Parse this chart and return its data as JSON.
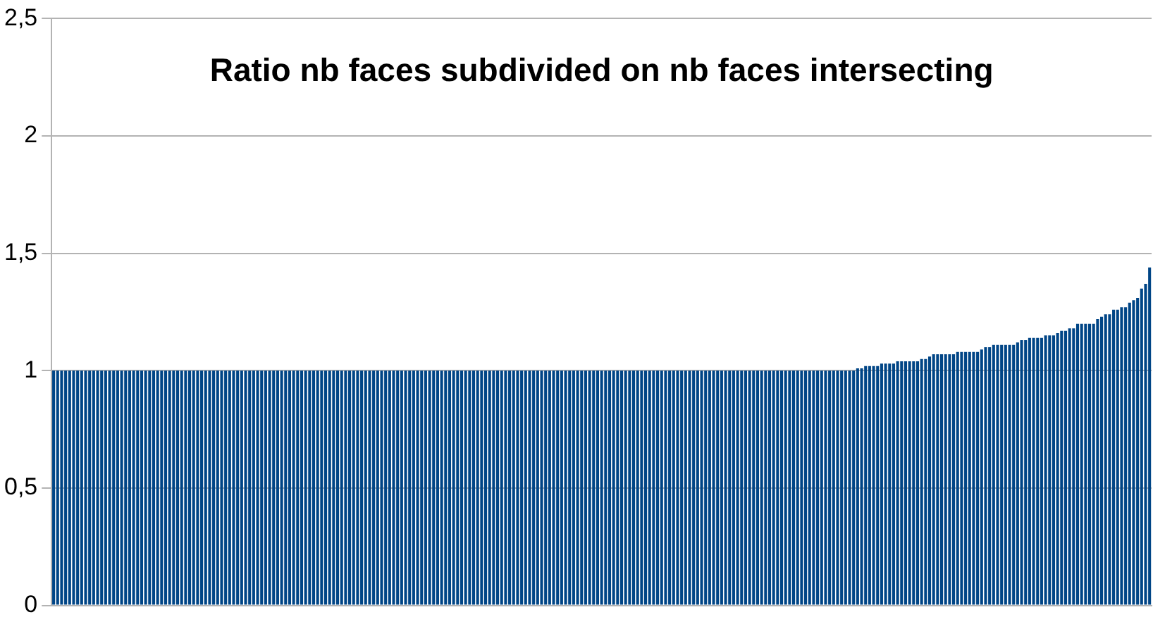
{
  "chart_data": {
    "type": "bar",
    "title": "Ratio nb faces subdivided on nb faces intersecting",
    "categories": [
      null,
      null,
      null,
      null,
      null,
      null,
      null,
      null,
      null,
      null,
      null,
      null,
      null,
      null,
      null,
      null,
      null,
      null,
      null,
      null,
      null,
      null,
      null,
      null,
      null,
      null,
      null,
      null,
      null,
      null,
      null,
      null,
      null,
      null,
      null,
      null,
      null,
      null,
      null,
      null,
      null,
      null,
      null,
      null,
      null,
      null,
      null,
      null,
      null,
      null,
      null,
      null,
      null,
      null,
      null,
      null,
      null,
      null,
      null,
      null,
      null,
      null,
      null,
      null,
      null,
      null,
      null,
      null,
      null,
      null,
      null,
      null,
      null,
      null,
      null,
      null,
      null,
      null,
      null,
      null,
      null,
      null,
      null,
      null,
      null,
      null,
      null,
      null,
      null,
      null,
      null,
      null,
      null,
      null,
      null,
      null,
      null,
      null,
      null,
      null,
      null,
      null,
      null,
      null,
      null,
      null,
      null,
      null,
      null,
      null,
      null,
      null,
      null,
      null,
      null,
      null,
      null,
      null,
      null,
      null,
      null,
      null,
      null,
      null,
      null,
      null,
      null,
      null,
      null,
      null,
      null,
      null,
      null,
      null,
      null,
      null,
      null,
      null,
      null,
      null,
      null,
      null,
      null,
      null,
      null,
      null,
      null,
      null,
      null,
      null,
      null,
      null,
      null,
      null,
      null,
      null,
      null,
      null,
      null,
      null,
      null,
      null,
      null,
      null,
      null,
      null,
      null,
      null,
      null,
      null,
      null,
      null,
      null,
      null,
      null,
      null,
      null,
      null,
      null,
      null,
      null,
      null,
      null,
      null,
      null,
      null,
      null,
      null,
      null,
      null,
      null,
      null,
      null,
      null,
      null,
      null,
      null,
      null,
      null,
      null,
      null,
      null,
      null,
      null,
      null,
      null,
      null,
      null,
      null,
      null,
      null,
      null,
      null,
      null,
      null,
      null,
      null,
      null,
      null,
      null,
      null,
      null,
      null,
      null,
      null,
      null,
      null,
      null,
      null,
      null,
      null,
      null,
      null,
      null,
      null,
      null,
      null,
      null,
      null,
      null,
      null,
      null,
      null,
      null,
      null,
      null,
      null,
      null,
      null,
      null,
      null,
      null,
      null,
      null,
      null,
      null,
      null,
      null,
      null,
      null,
      null,
      null,
      null,
      null,
      null,
      null,
      null,
      null,
      null,
      null,
      null,
      null,
      null,
      null,
      null
    ],
    "values": [
      1,
      1,
      1,
      1,
      1,
      1,
      1,
      1,
      1,
      1,
      1,
      1,
      1,
      1,
      1,
      1,
      1,
      1,
      1,
      1,
      1,
      1,
      1,
      1,
      1,
      1,
      1,
      1,
      1,
      1,
      1,
      1,
      1,
      1,
      1,
      1,
      1,
      1,
      1,
      1,
      1,
      1,
      1,
      1,
      1,
      1,
      1,
      1,
      1,
      1,
      1,
      1,
      1,
      1,
      1,
      1,
      1,
      1,
      1,
      1,
      1,
      1,
      1,
      1,
      1,
      1,
      1,
      1,
      1,
      1,
      1,
      1,
      1,
      1,
      1,
      1,
      1,
      1,
      1,
      1,
      1,
      1,
      1,
      1,
      1,
      1,
      1,
      1,
      1,
      1,
      1,
      1,
      1,
      1,
      1,
      1,
      1,
      1,
      1,
      1,
      1,
      1,
      1,
      1,
      1,
      1,
      1,
      1,
      1,
      1,
      1,
      1,
      1,
      1,
      1,
      1,
      1,
      1,
      1,
      1,
      1,
      1,
      1,
      1,
      1,
      1,
      1,
      1,
      1,
      1,
      1,
      1,
      1,
      1,
      1,
      1,
      1,
      1,
      1,
      1,
      1,
      1,
      1,
      1,
      1,
      1,
      1,
      1,
      1,
      1,
      1,
      1,
      1,
      1,
      1,
      1,
      1,
      1,
      1,
      1,
      1,
      1,
      1,
      1,
      1,
      1,
      1,
      1,
      1,
      1,
      1,
      1,
      1,
      1,
      1,
      1,
      1,
      1,
      1,
      1,
      1,
      1,
      1,
      1,
      1,
      1,
      1,
      1,
      1,
      1,
      1,
      1,
      1,
      1,
      1,
      1,
      1,
      1,
      1,
      1,
      1,
      1.01,
      1.01,
      1.02,
      1.02,
      1.02,
      1.02,
      1.03,
      1.03,
      1.03,
      1.03,
      1.04,
      1.04,
      1.04,
      1.04,
      1.04,
      1.04,
      1.05,
      1.05,
      1.06,
      1.07,
      1.07,
      1.07,
      1.07,
      1.07,
      1.07,
      1.08,
      1.08,
      1.08,
      1.08,
      1.08,
      1.08,
      1.09,
      1.1,
      1.1,
      1.11,
      1.11,
      1.11,
      1.11,
      1.11,
      1.11,
      1.12,
      1.13,
      1.13,
      1.14,
      1.14,
      1.14,
      1.14,
      1.15,
      1.15,
      1.15,
      1.16,
      1.17,
      1.17,
      1.18,
      1.18,
      1.2,
      1.2,
      1.2,
      1.2,
      1.2,
      1.22,
      1.23,
      1.24,
      1.24,
      1.26,
      1.26,
      1.27,
      1.27,
      1.29,
      1.3,
      1.31,
      1.35,
      1.37,
      1.44
    ],
    "color": "#004586",
    "ylim": [
      0,
      2.5
    ],
    "yticks": [
      0,
      {
        "value": 0.5,
        "label": "0,5"
      },
      1,
      {
        "value": 1.5,
        "label": "1,5"
      },
      2,
      {
        "value": 2.5,
        "label": "2,5"
      }
    ],
    "grid": "y",
    "tick_labels": "y"
  }
}
